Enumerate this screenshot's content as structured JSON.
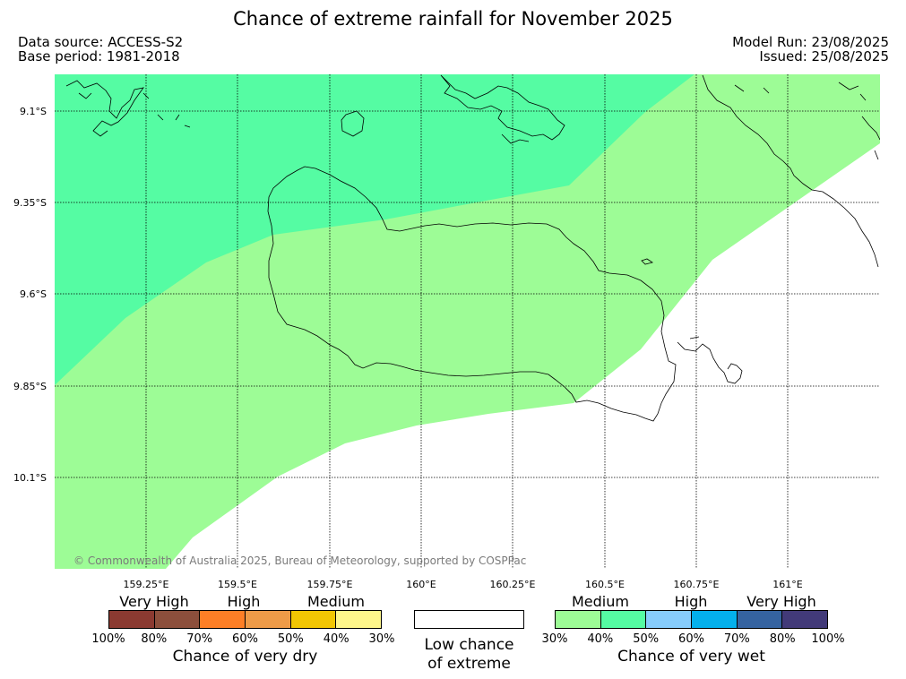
{
  "header": {
    "title": "Chance of extreme rainfall for November 2025",
    "source": "Data source: ACCESS-S2",
    "base_period": "Base period: 1981-2018",
    "model_run": "Model Run: 23/08/2025",
    "issued": "Issued: 25/08/2025"
  },
  "map": {
    "lat_labels": [
      "9.1°S",
      "9.35°S",
      "9.6°S",
      "9.85°S",
      "10.1°S"
    ],
    "lon_labels": [
      "159.25°E",
      "159.5°E",
      "159.75°E",
      "160°E",
      "160.25°E",
      "160.5°E",
      "160.75°E",
      "161°E"
    ],
    "copyright": "© Commonwealth of Australia 2025, Bureau of Meteorology, supported by COSPPac",
    "colors": {
      "very_wet_medium": "#9dfc96",
      "very_wet_high": "#55fca3"
    }
  },
  "legend": {
    "dry": {
      "category_labels": [
        "Very High",
        "High",
        "Medium"
      ],
      "ticks": [
        "100%",
        "80%",
        "70%",
        "60%",
        "50%",
        "40%",
        "30%"
      ],
      "colors": [
        "#8b3a31",
        "#8c4f3c",
        "#fd7f26",
        "#ee9b48",
        "#f2c603",
        "#fef68b"
      ],
      "caption": "Chance of very dry"
    },
    "low": {
      "line1": "Low chance",
      "line2": "of extreme"
    },
    "wet": {
      "category_labels": [
        "Medium",
        "High",
        "Very High"
      ],
      "ticks": [
        "30%",
        "40%",
        "50%",
        "60%",
        "70%",
        "80%",
        "100%"
      ],
      "colors": [
        "#9dfc96",
        "#55fca3",
        "#86ccfc",
        "#04b0ec",
        "#3563a0",
        "#423a79"
      ],
      "caption": "Chance of very wet"
    }
  }
}
